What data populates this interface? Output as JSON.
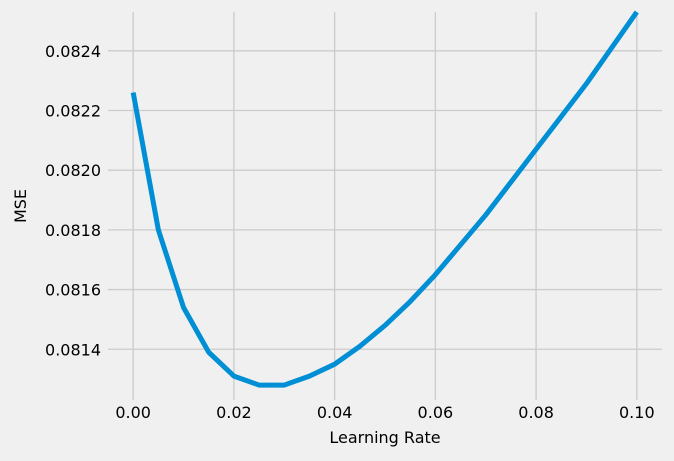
{
  "chart_data": {
    "type": "line",
    "title": "",
    "xlabel": "Learning Rate",
    "ylabel": "MSE",
    "xlim": [
      -0.005,
      0.105
    ],
    "ylim": [
      0.08123,
      0.08253
    ],
    "x_ticks": [
      0.0,
      0.02,
      0.04,
      0.06,
      0.08,
      0.1
    ],
    "x_tick_labels": [
      "0.00",
      "0.02",
      "0.04",
      "0.06",
      "0.08",
      "0.10"
    ],
    "y_ticks": [
      0.0814,
      0.0816,
      0.0818,
      0.082,
      0.0822,
      0.0824
    ],
    "y_tick_labels": [
      "0.0814",
      "0.0816",
      "0.0818",
      "0.0820",
      "0.0822",
      "0.0824"
    ],
    "grid": true,
    "series": [
      {
        "color": "#008fd5",
        "x": [
          0.0,
          0.005,
          0.01,
          0.015,
          0.02,
          0.025,
          0.03,
          0.035,
          0.04,
          0.045,
          0.05,
          0.055,
          0.06,
          0.065,
          0.07,
          0.075,
          0.08,
          0.085,
          0.09,
          0.095,
          0.1
        ],
        "y": [
          0.08226,
          0.0818,
          0.08154,
          0.08139,
          0.08131,
          0.08128,
          0.08128,
          0.08131,
          0.08135,
          0.08141,
          0.08148,
          0.08156,
          0.08165,
          0.08175,
          0.08185,
          0.08196,
          0.08207,
          0.08218,
          0.08229,
          0.08241,
          0.08253
        ]
      }
    ]
  },
  "colors": {
    "background": "#f0f0f0",
    "grid": "#cbcbcb",
    "line": "#008fd5"
  }
}
